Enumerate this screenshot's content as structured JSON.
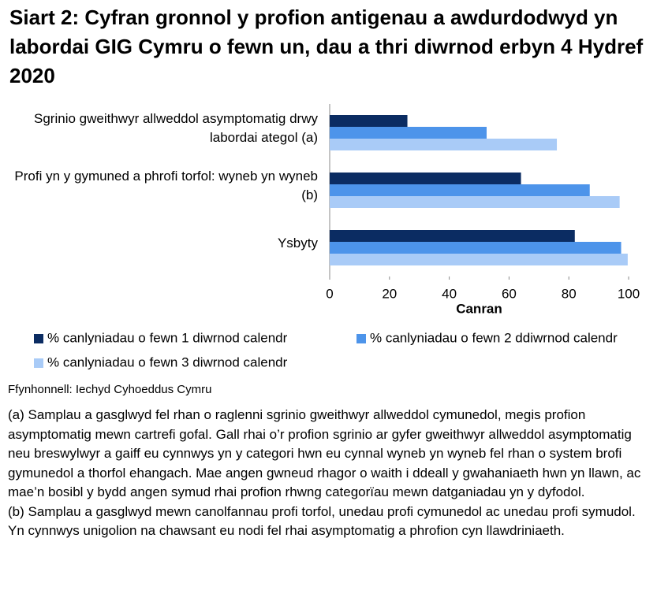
{
  "chart_data": {
    "type": "hbar",
    "title": "Siart 2: Cyfran gronnol y profion antigenau a awdurdodwyd yn labordai GIG Cymru o fewn un, dau a thri diwrnod erbyn 4 Hydref 2020",
    "categories": [
      "Sgrinio gweithwyr allweddol asymptomatig drwy labordai ategol (a)",
      "Profi yn y gymuned a phrofi torfol: wyneb yn wyneb (b)",
      "Ysbyty"
    ],
    "series": [
      {
        "name": "% canlyniadau o fewn 1 diwrnod calendr",
        "color": "#0b2c62",
        "values": [
          26,
          64,
          82
        ]
      },
      {
        "name": "% canlyniadau o fewn 2 ddiwrnod calendr",
        "color": "#4d94ea",
        "values": [
          52.5,
          87,
          97.5
        ]
      },
      {
        "name": "% canlyniadau o fewn 3 diwrnod calendr",
        "color": "#a9cbf7",
        "values": [
          76,
          97,
          99.7
        ]
      }
    ],
    "xlabel": "Canran",
    "xlim": [
      0,
      100
    ],
    "xticks": [
      0,
      20,
      40,
      60,
      80,
      100
    ],
    "grid": false,
    "source": "Ffynhonnell: Iechyd Cyhoeddus Cymru",
    "notes": [
      "(a) Samplau a gasglwyd fel rhan o raglenni sgrinio gweithwyr allweddol cymunedol, megis profion asymptomatig mewn cartrefi gofal. Gall rhai o’r profion sgrinio ar gyfer gweithwyr allweddol asymptomatig neu breswylwyr a gaiff eu cynnwys yn y categori hwn eu cynnal wyneb yn wyneb fel rhan o system brofi gymunedol a thorfol ehangach. Mae angen gwneud rhagor o waith i ddeall y gwahaniaeth hwn yn llawn, ac mae’n bosibl y bydd angen symud rhai profion rhwng categorïau mewn datganiadau yn y dyfodol.",
      "(b) Samplau a gasglwyd mewn canolfannau profi torfol, unedau profi cymunedol ac unedau profi symudol. Yn cynnwys unigolion na chawsant eu nodi fel rhai asymptomatig a phrofion cyn llawdriniaeth."
    ]
  }
}
